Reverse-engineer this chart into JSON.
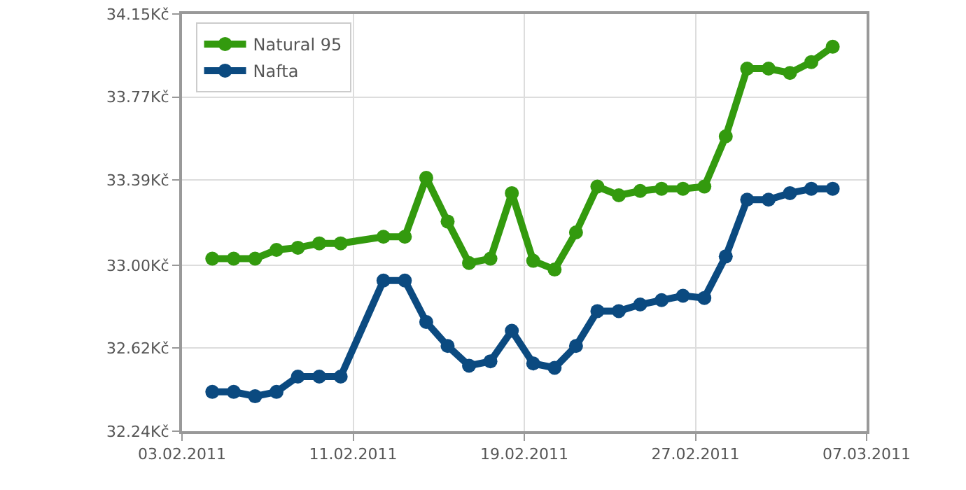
{
  "chart_data": {
    "type": "line",
    "x": [
      "2011-02-04T10:00",
      "2011-02-05T10:00",
      "2011-02-06T10:00",
      "2011-02-07T10:00",
      "2011-02-08T10:00",
      "2011-02-09T10:00",
      "2011-02-10T10:00",
      "2011-02-12T10:00",
      "2011-02-13T10:00",
      "2011-02-14T10:00",
      "2011-02-15T10:00",
      "2011-02-16T10:00",
      "2011-02-17T10:00",
      "2011-02-18T10:00",
      "2011-02-19T10:00",
      "2011-02-20T10:00",
      "2011-02-21T10:00",
      "2011-02-22T10:00",
      "2011-02-23T10:00",
      "2011-02-24T10:00",
      "2011-02-25T10:00",
      "2011-02-26T10:00",
      "2011-02-27T10:00",
      "2011-02-28T10:00",
      "2011-03-01T10:00",
      "2011-03-02T10:00",
      "2011-03-03T10:00",
      "2011-03-04T10:00",
      "2011-03-05T10:00"
    ],
    "series": [
      {
        "name": "Natural 95",
        "color": "#339a0e",
        "values": [
          33.03,
          33.03,
          33.03,
          33.07,
          33.08,
          33.1,
          33.1,
          33.13,
          33.13,
          33.4,
          33.2,
          33.01,
          33.03,
          33.33,
          33.02,
          32.98,
          33.15,
          33.36,
          33.32,
          33.34,
          33.35,
          33.35,
          33.36,
          33.59,
          33.9,
          33.9,
          33.88,
          33.93,
          34.0
        ]
      },
      {
        "name": "Nafta",
        "color": "#0b4a80",
        "values": [
          32.42,
          32.42,
          32.4,
          32.42,
          32.49,
          32.49,
          32.49,
          32.93,
          32.93,
          32.74,
          32.63,
          32.54,
          32.56,
          32.7,
          32.55,
          32.53,
          32.63,
          32.79,
          32.79,
          32.82,
          32.84,
          32.86,
          32.85,
          33.04,
          33.3,
          33.3,
          33.33,
          33.35,
          33.35
        ]
      }
    ],
    "xlim": [
      "2011-02-03",
      "2011-03-07"
    ],
    "xticks": [
      {
        "value": "2011-02-03",
        "label": "03.02.2011"
      },
      {
        "value": "2011-02-11",
        "label": "11.02.2011"
      },
      {
        "value": "2011-02-19",
        "label": "19.02.2011"
      },
      {
        "value": "2011-02-27",
        "label": "27.02.2011"
      },
      {
        "value": "2011-03-07",
        "label": "07.03.2011"
      }
    ],
    "ylim": [
      32.24,
      34.15
    ],
    "yticks": [
      {
        "value": 32.24,
        "label": "32.24Kč"
      },
      {
        "value": 32.62,
        "label": "32.62Kč"
      },
      {
        "value": 33.0,
        "label": "33.00Kč"
      },
      {
        "value": 33.39,
        "label": "33.39Kč"
      },
      {
        "value": 33.77,
        "label": "33.77Kč"
      },
      {
        "value": 34.15,
        "label": "34.15Kč"
      }
    ],
    "grid": true,
    "legend": "top left",
    "marker": "circle",
    "line_style": "solid"
  }
}
